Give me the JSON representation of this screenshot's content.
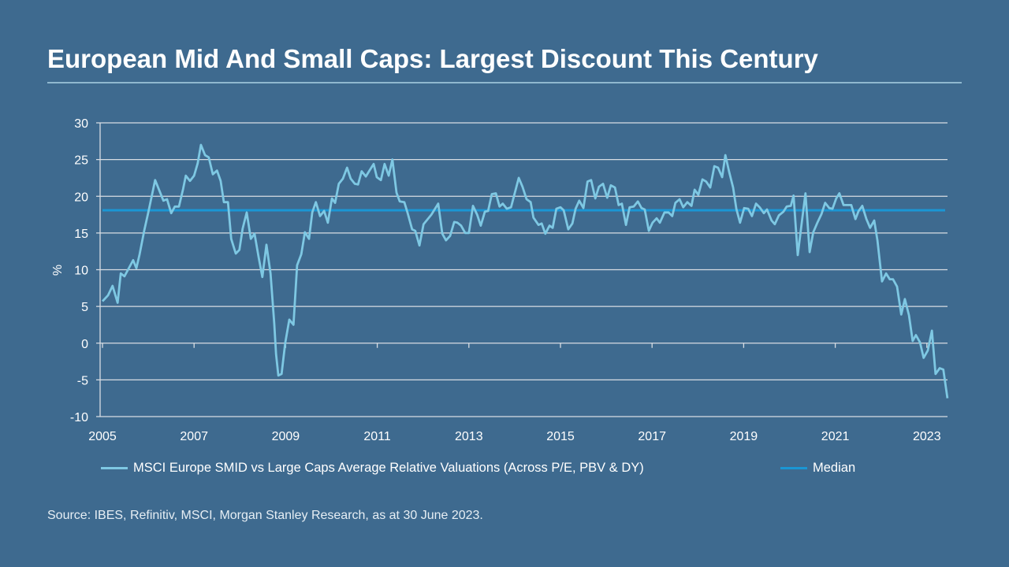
{
  "title": "European Mid And Small Caps: Largest Discount This Century",
  "source": "Source: IBES, Refinitiv, MSCI, Morgan Stanley Research, as at 30 June 2023.",
  "colors": {
    "background": "#3e6a8f",
    "series": "#7ec8e3",
    "median": "#1a96d4"
  },
  "chart_data": {
    "type": "line",
    "title": "European Mid And Small Caps: Largest Discount This Century",
    "xlabel": "",
    "ylabel": "%",
    "xlim": [
      2005,
      2023.5
    ],
    "ylim": [
      -10,
      30
    ],
    "x_ticks": [
      "2005",
      "2007",
      "2009",
      "2011",
      "2013",
      "2015",
      "2017",
      "2019",
      "2021",
      "2023"
    ],
    "y_ticks": [
      "30",
      "25",
      "20",
      "15",
      "10",
      "5",
      "0",
      "-5",
      "-10"
    ],
    "grid": true,
    "legend_position": "bottom",
    "series": [
      {
        "name": "MSCI Europe SMID vs Large Caps Average Relative Valuations (Across P/E, PBV & DY)",
        "x": [
          2005.0,
          2005.12,
          2005.22,
          2005.33,
          2005.4,
          2005.48,
          2005.67,
          2005.74,
          2005.81,
          2005.91,
          2006.0,
          2006.15,
          2006.33,
          2006.41,
          2006.5,
          2006.58,
          2006.67,
          2006.76,
          2006.82,
          2006.91,
          2007.0,
          2007.08,
          2007.15,
          2007.24,
          2007.32,
          2007.41,
          2007.5,
          2007.58,
          2007.65,
          2007.74,
          2007.81,
          2007.91,
          2007.99,
          2008.06,
          2008.15,
          2008.24,
          2008.32,
          2008.41,
          2008.49,
          2008.58,
          2008.67,
          2008.75,
          2008.79,
          2008.84,
          2008.91,
          2008.99,
          2009.08,
          2009.17,
          2009.25,
          2009.34,
          2009.42,
          2009.51,
          2009.58,
          2009.66,
          2009.75,
          2009.84,
          2009.92,
          2010.01,
          2010.08,
          2010.16,
          2010.25,
          2010.34,
          2010.42,
          2010.51,
          2010.58,
          2010.66,
          2010.75,
          2010.83,
          2010.92,
          2010.99,
          2011.08,
          2011.16,
          2011.25,
          2011.33,
          2011.42,
          2011.49,
          2011.59,
          2011.66,
          2011.76,
          2011.83,
          2011.92,
          2012.01,
          2012.18,
          2012.33,
          2012.42,
          2012.5,
          2012.59,
          2012.68,
          2012.75,
          2012.83,
          2012.92,
          2013.0,
          2013.09,
          2013.18,
          2013.26,
          2013.35,
          2013.42,
          2013.5,
          2013.59,
          2013.67,
          2013.74,
          2013.83,
          2013.92,
          2014.09,
          2014.17,
          2014.26,
          2014.35,
          2014.41,
          2014.52,
          2014.59,
          2014.67,
          2014.76,
          2014.83,
          2014.91,
          2015.0,
          2015.07,
          2015.17,
          2015.26,
          2015.33,
          2015.41,
          2015.5,
          2015.59,
          2015.67,
          2015.76,
          2015.84,
          2015.93,
          2016.02,
          2016.1,
          2016.19,
          2016.27,
          2016.34,
          2016.43,
          2016.51,
          2016.6,
          2016.69,
          2016.77,
          2016.84,
          2016.93,
          2017.01,
          2017.1,
          2017.17,
          2017.27,
          2017.36,
          2017.44,
          2017.51,
          2017.6,
          2017.68,
          2017.77,
          2017.86,
          2017.93,
          2018.01,
          2018.1,
          2018.18,
          2018.27,
          2018.36,
          2018.44,
          2018.53,
          2018.6,
          2018.68,
          2018.77,
          2018.84,
          2018.92,
          2019.01,
          2019.1,
          2019.18,
          2019.27,
          2019.35,
          2019.44,
          2019.51,
          2019.61,
          2019.68,
          2019.77,
          2019.87,
          2019.94,
          2020.03,
          2020.09,
          2020.18,
          2020.27,
          2020.35,
          2020.44,
          2020.52,
          2020.61,
          2020.7,
          2020.78,
          2020.87,
          2020.94,
          2021.02,
          2021.09,
          2021.18,
          2021.26,
          2021.35,
          2021.44,
          2021.51,
          2021.59,
          2021.68,
          2021.76,
          2021.85,
          2021.92,
          2022.02,
          2022.11,
          2022.19,
          2022.26,
          2022.35,
          2022.44,
          2022.52,
          2022.61,
          2022.69,
          2022.76,
          2022.85,
          2022.93,
          2023.02,
          2023.11,
          2023.19,
          2023.28,
          2023.36,
          2023.45
        ],
        "y": [
          5.7,
          6.5,
          7.8,
          5.5,
          9.5,
          9.1,
          11.3,
          10.2,
          12.1,
          15.3,
          17.8,
          22.2,
          19.4,
          19.6,
          17.7,
          18.6,
          18.6,
          21.0,
          22.8,
          22.1,
          22.8,
          24.5,
          27.0,
          25.6,
          25.3,
          23.0,
          23.5,
          22.1,
          19.2,
          19.2,
          14.2,
          12.2,
          12.7,
          15.6,
          17.8,
          14.2,
          14.9,
          11.7,
          9.0,
          13.4,
          9.5,
          2.7,
          -1.5,
          -4.4,
          -4.2,
          0.0,
          3.2,
          2.5,
          10.6,
          12.1,
          15.1,
          14.2,
          17.8,
          19.2,
          17.3,
          18.0,
          16.4,
          19.7,
          19.1,
          21.7,
          22.4,
          23.9,
          22.4,
          21.7,
          21.6,
          23.4,
          22.7,
          23.5,
          24.4,
          22.6,
          22.2,
          24.4,
          22.8,
          25.0,
          20.5,
          19.3,
          19.2,
          17.8,
          15.5,
          15.3,
          13.3,
          16.2,
          17.5,
          19.0,
          14.9,
          14.0,
          14.6,
          16.5,
          16.4,
          16.0,
          15.0,
          15.0,
          18.7,
          17.5,
          16.0,
          17.9,
          18.0,
          20.3,
          20.4,
          18.6,
          19.0,
          18.3,
          18.5,
          22.5,
          21.3,
          19.6,
          19.2,
          17.1,
          16.1,
          16.3,
          14.9,
          16.0,
          15.7,
          18.3,
          18.5,
          18.1,
          15.5,
          16.3,
          18.3,
          19.4,
          18.4,
          22.0,
          22.2,
          19.7,
          21.3,
          21.7,
          19.8,
          21.5,
          21.2,
          18.8,
          19.0,
          16.1,
          18.5,
          18.6,
          19.3,
          18.4,
          18.2,
          15.3,
          16.4,
          17.0,
          16.4,
          17.8,
          17.8,
          17.3,
          19.1,
          19.6,
          18.5,
          19.2,
          18.7,
          20.9,
          20.2,
          22.3,
          22.0,
          21.2,
          24.1,
          23.9,
          22.6,
          25.6,
          23.4,
          21.2,
          18.3,
          16.4,
          18.4,
          18.3,
          17.3,
          19.0,
          18.5,
          17.7,
          18.2,
          16.7,
          16.2,
          17.4,
          17.9,
          18.6,
          18.7,
          20.1,
          12.0,
          16.5,
          20.4,
          12.4,
          15.1,
          16.4,
          17.6,
          19.1,
          18.4,
          18.3,
          19.7,
          20.4,
          18.8,
          18.8,
          18.8,
          16.9,
          18.0,
          18.7,
          16.9,
          15.7,
          16.7,
          14.0,
          8.4,
          9.5,
          8.7,
          8.7,
          7.7,
          3.9,
          6.0,
          3.8,
          0.3,
          1.1,
          0.1,
          -2.0,
          -1.0,
          1.7,
          -4.2,
          -3.4,
          -3.6,
          -7.5
        ]
      },
      {
        "name": "Median",
        "value": 18.1
      }
    ]
  }
}
